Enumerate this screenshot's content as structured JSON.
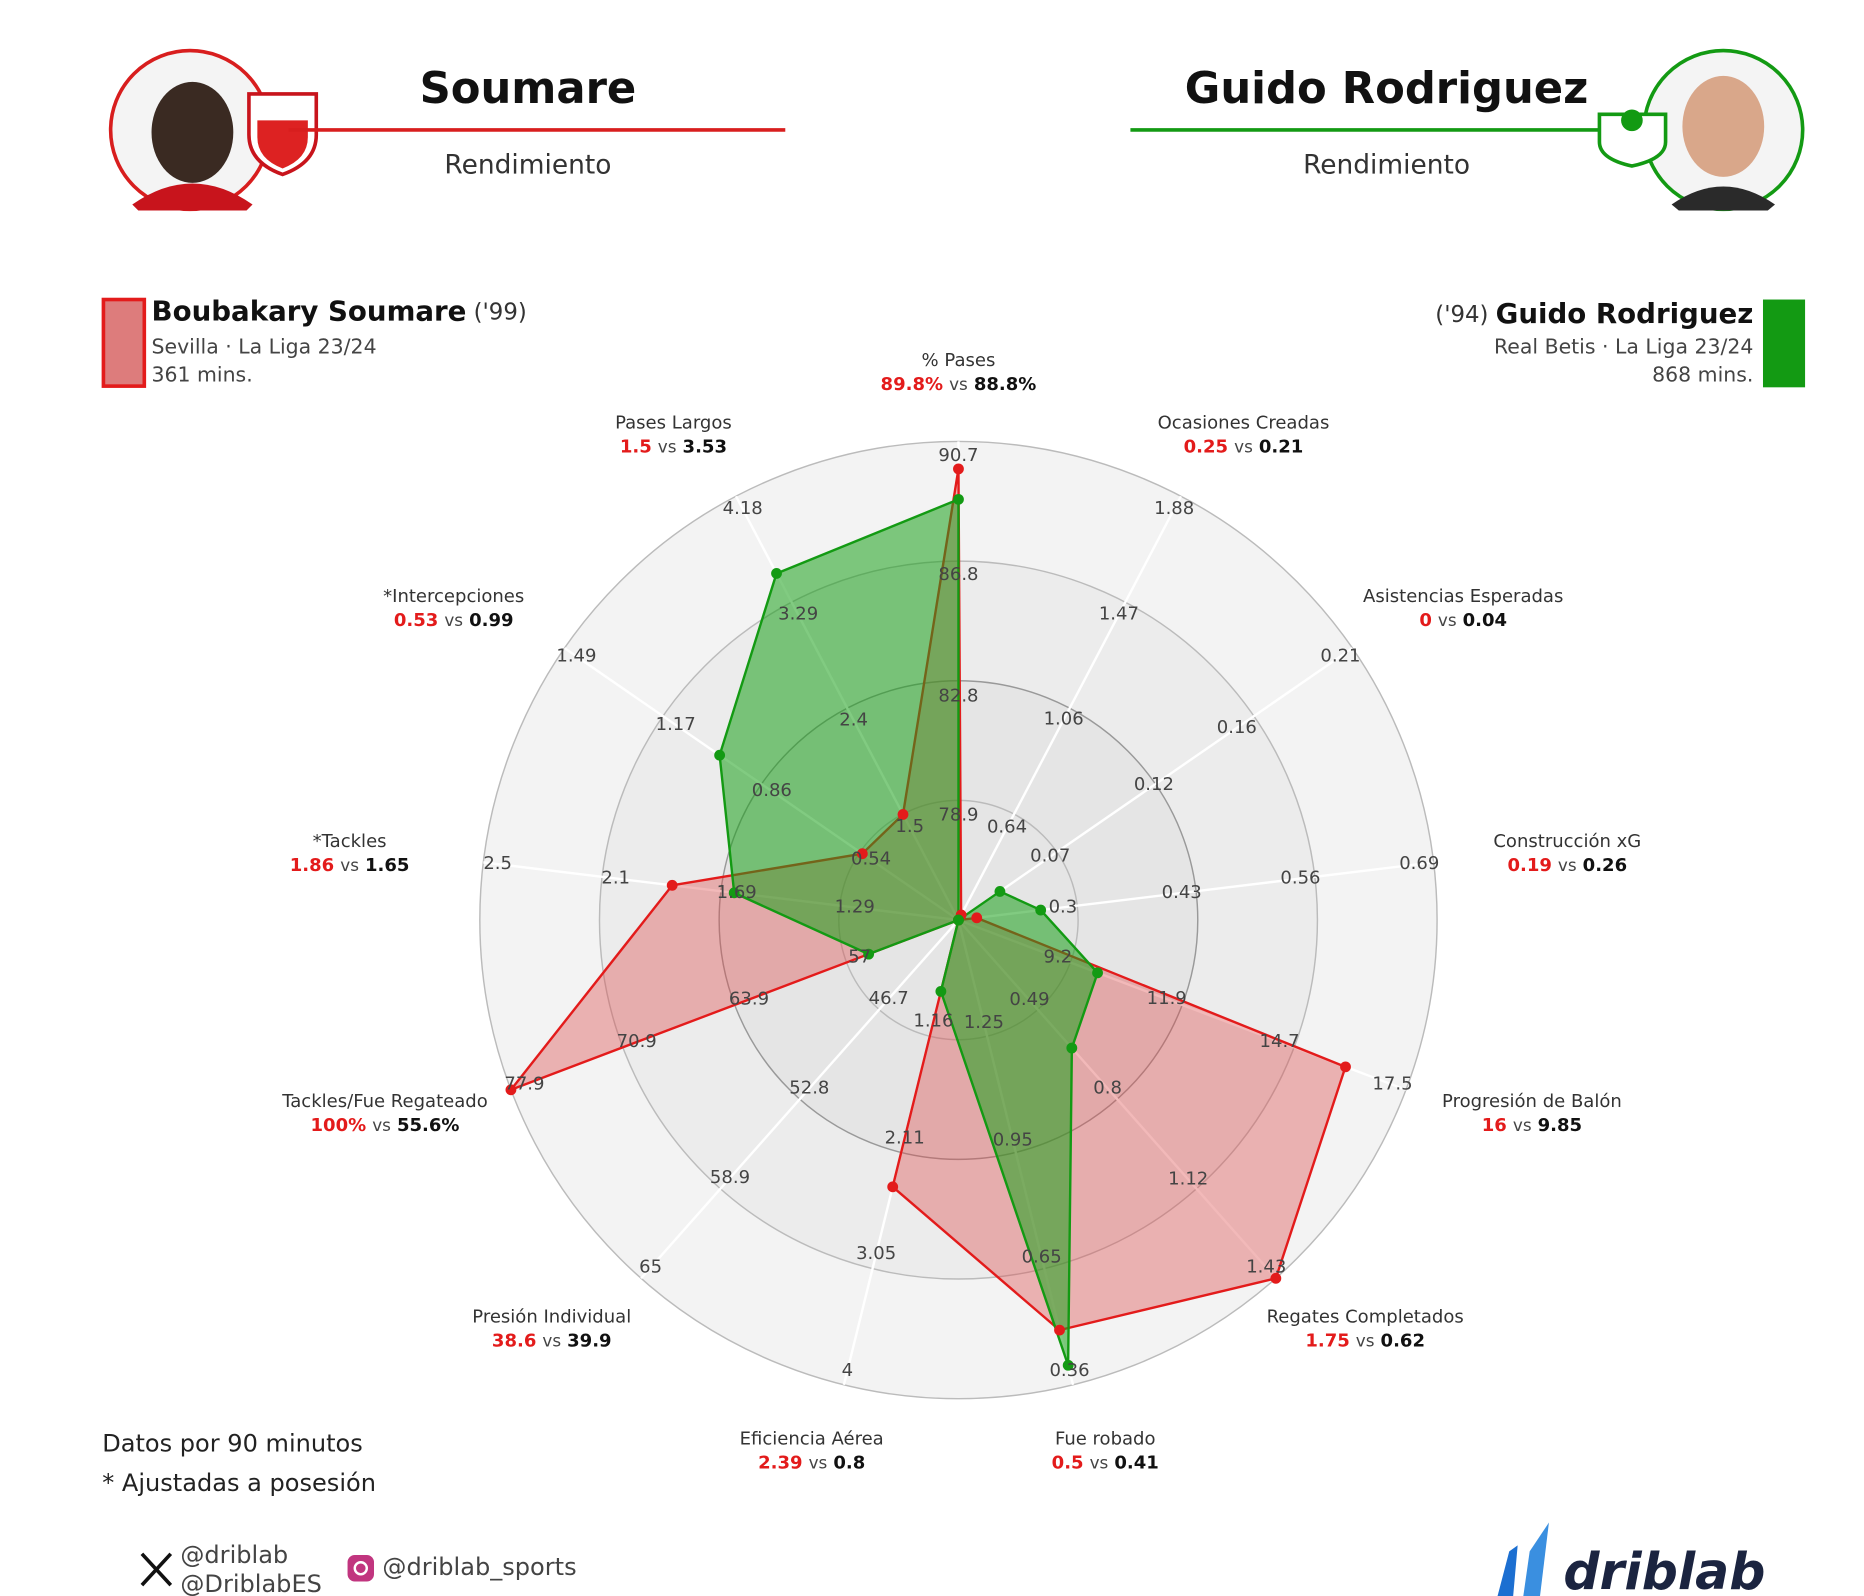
{
  "header": {
    "left_name": "Soumare",
    "left_subtitle": "Rendimiento",
    "right_name": "Guido Rodriguez",
    "right_subtitle": "Rendimiento"
  },
  "players": [
    {
      "year": "('99)",
      "team": "Sevilla · La Liga 23/24",
      "minutes": "361 mins."
    },
    {
      "year": "('94)",
      "team": "Real Betis · La Liga 23/24",
      "minutes": "868 mins."
    }
  ],
  "chart_data": {
    "type": "radar",
    "categories": [
      "% Pases",
      "Ocasiones Creadas",
      "Asistencias Esperadas",
      "Construcción xG",
      "Progresión de Balón",
      "Regates Completados",
      "Fue robado",
      "Eficiencia Aérea",
      "Presión Individual",
      "Tackles/Fue Regateado",
      "*Tackles",
      "*Intercepciones",
      "Pases Largos"
    ],
    "axes": [
      {
        "lim": [
          75,
          90.7
        ],
        "ticks": [
          78.9,
          82.8,
          86.8,
          90.7
        ]
      },
      {
        "lim": [
          0.23,
          1.88
        ],
        "ticks": [
          0.64,
          1.06,
          1.47,
          1.88
        ]
      },
      {
        "lim": [
          0.02,
          0.21
        ],
        "ticks": [
          0.07,
          0.12,
          0.16,
          0.21
        ]
      },
      {
        "lim": [
          0.17,
          0.69
        ],
        "ticks": [
          0.3,
          0.43,
          0.56,
          0.69
        ]
      },
      {
        "lim": [
          6.4,
          17.5
        ],
        "ticks": [
          9.2,
          11.9,
          14.7,
          17.5
        ]
      },
      {
        "lim": [
          0.17,
          1.43
        ],
        "ticks": [
          0.49,
          0.8,
          1.12,
          1.43
        ]
      },
      {
        "lim": [
          1.55,
          0.36
        ],
        "ticks": [
          1.25,
          0.95,
          0.65,
          0.36
        ]
      },
      {
        "lim": [
          0.22,
          4
        ],
        "ticks": [
          1.16,
          2.11,
          3.05,
          4
        ]
      },
      {
        "lim": [
          40.6,
          65
        ],
        "ticks": [
          46.7,
          52.8,
          58.9,
          65
        ]
      },
      {
        "lim": [
          50,
          77.9
        ],
        "ticks": [
          57,
          63.9,
          70.9,
          77.9
        ]
      },
      {
        "lim": [
          0.89,
          2.5
        ],
        "ticks": [
          1.29,
          1.69,
          2.1,
          2.5
        ]
      },
      {
        "lim": [
          0.22,
          1.49
        ],
        "ticks": [
          0.54,
          0.86,
          1.17,
          1.49
        ]
      },
      {
        "lim": [
          0.61,
          4.18
        ],
        "ticks": [
          1.5,
          2.4,
          3.29,
          4.18
        ]
      }
    ],
    "vs_label": "vs",
    "series": [
      {
        "name": "Boubakary Soumare",
        "color": "#e31b1b",
        "values": [
          89.8,
          0.25,
          0,
          0.19,
          16,
          1.75,
          0.5,
          2.39,
          38.6,
          100,
          1.86,
          0.53,
          1.5
        ],
        "value_labels": [
          "89.8%",
          "0.25",
          "0",
          "0.19",
          "16",
          "1.75",
          "0.5",
          "2.39",
          "38.6",
          "100%",
          "1.86",
          "0.53",
          "1.5"
        ]
      },
      {
        "name": "Guido Rodriguez",
        "color": "#139a13",
        "values": [
          88.8,
          0.21,
          0.04,
          0.26,
          9.85,
          0.62,
          0.41,
          0.8,
          39.9,
          55.6,
          1.65,
          0.99,
          3.53
        ],
        "value_labels": [
          "88.8%",
          "0.21",
          "0.04",
          "0.26",
          "9.85",
          "0.62",
          "0.41",
          "0.8",
          "39.9",
          "55.6%",
          "1.65",
          "0.99",
          "3.53"
        ]
      }
    ]
  },
  "footer": {
    "note1": "Datos por 90 minutos",
    "note2": "* Ajustadas a posesión",
    "twitter1": "@driblab",
    "twitter2": "@DriblabES",
    "instagram": "@driblab_sports",
    "brand": "driblab"
  }
}
